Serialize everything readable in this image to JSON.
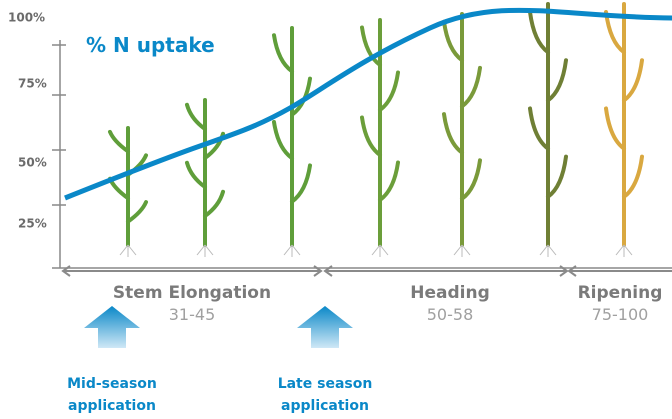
{
  "y_axis_labels": [
    "100%",
    "75%",
    "50%",
    "25%"
  ],
  "curve_label": "% N uptake",
  "stages": [
    {
      "name": "Stem Elongation",
      "range": "31-45"
    },
    {
      "name": "Heading",
      "range": "50-58"
    },
    {
      "name": "Ripening",
      "range": "75-100"
    }
  ],
  "applications": [
    {
      "line1": "Mid-season",
      "line2": "application"
    },
    {
      "line1": "Late season",
      "line2": "application"
    }
  ]
}
